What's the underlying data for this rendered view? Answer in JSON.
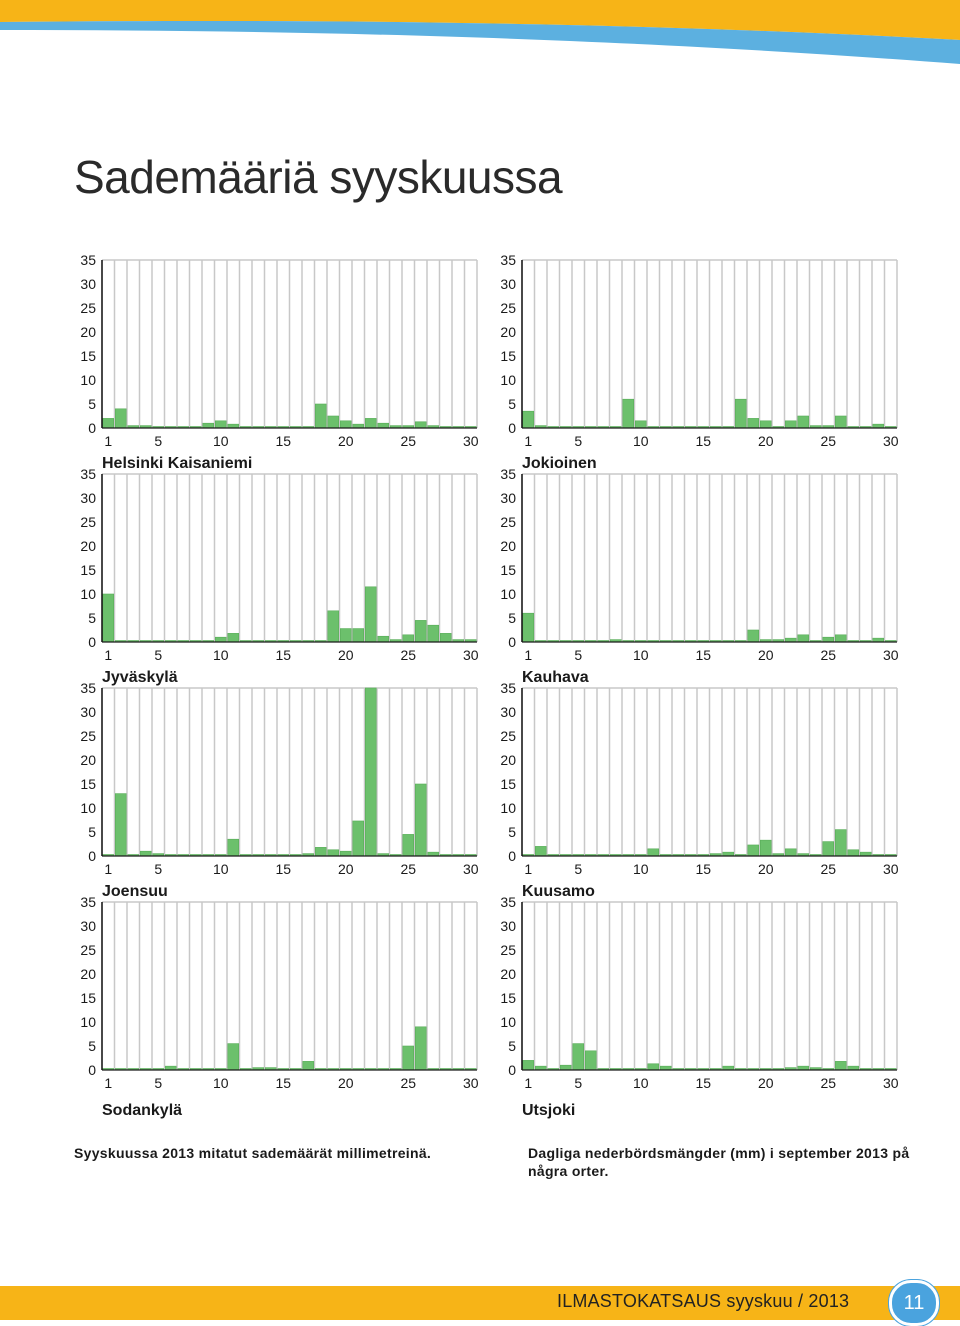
{
  "page": {
    "title": "Sademääriä syyskuussa",
    "caption_fi": "Syyskuussa 2013 mitatut sademäärät millimetreinä.",
    "caption_sv": "Dagliga nederbördsmängder (mm) i september 2013 på några orter.",
    "footer": "ILMASTOKATSAUS syyskuu / 2013",
    "page_number": "11"
  },
  "colors": {
    "bar": "#6cc06c",
    "bar_edge": "#58ad58",
    "grid": "#c8c8c8",
    "axis": "#1a1a1a",
    "top_band_blue": "#5cb0e0",
    "footer_yellow": "#f7b417",
    "badge": "#4aa3de"
  },
  "chart_data": [
    {
      "type": "bar",
      "station": "Helsinki Kaisaniemi",
      "x": [
        1,
        2,
        3,
        4,
        5,
        6,
        7,
        8,
        9,
        10,
        11,
        12,
        13,
        14,
        15,
        16,
        17,
        18,
        19,
        20,
        21,
        22,
        23,
        24,
        25,
        26,
        27,
        28,
        29,
        30
      ],
      "values": [
        2,
        4,
        0.5,
        0.5,
        0.3,
        0.3,
        0.3,
        0.3,
        1,
        1.5,
        0.8,
        0.3,
        0.3,
        0.3,
        0.3,
        0.3,
        0.3,
        5,
        2.5,
        1.5,
        0.8,
        2,
        1,
        0.5,
        0.5,
        1.3,
        0.5,
        0.3,
        0.3,
        0.3
      ],
      "yticks": [
        0,
        5,
        10,
        15,
        20,
        25,
        30,
        35
      ],
      "xticks": [
        1,
        5,
        10,
        15,
        20,
        25,
        30
      ],
      "ylim": [
        0,
        35
      ]
    },
    {
      "type": "bar",
      "station": "Jokioinen",
      "x": [
        1,
        2,
        3,
        4,
        5,
        6,
        7,
        8,
        9,
        10,
        11,
        12,
        13,
        14,
        15,
        16,
        17,
        18,
        19,
        20,
        21,
        22,
        23,
        24,
        25,
        26,
        27,
        28,
        29,
        30
      ],
      "values": [
        3.5,
        0.5,
        0.3,
        0.3,
        0.3,
        0.3,
        0.3,
        0.3,
        6,
        1.5,
        0.3,
        0.3,
        0.3,
        0.3,
        0.3,
        0.3,
        0.3,
        6,
        2,
        1.5,
        0.3,
        1.5,
        2.5,
        0.5,
        0.5,
        2.5,
        0.3,
        0.3,
        0.8,
        0.3
      ],
      "yticks": [
        0,
        5,
        10,
        15,
        20,
        25,
        30,
        35
      ],
      "xticks": [
        1,
        5,
        10,
        15,
        20,
        25,
        30
      ],
      "ylim": [
        0,
        35
      ]
    },
    {
      "type": "bar",
      "station": "Jyväskylä",
      "x": [
        1,
        2,
        3,
        4,
        5,
        6,
        7,
        8,
        9,
        10,
        11,
        12,
        13,
        14,
        15,
        16,
        17,
        18,
        19,
        20,
        21,
        22,
        23,
        24,
        25,
        26,
        27,
        28,
        29,
        30
      ],
      "values": [
        10,
        0.3,
        0.3,
        0.3,
        0.3,
        0.3,
        0.3,
        0.3,
        0.3,
        1,
        1.8,
        0.3,
        0.3,
        0.3,
        0.3,
        0.3,
        0.3,
        0.3,
        6.5,
        2.8,
        2.8,
        11.5,
        1.2,
        0.5,
        1.5,
        4.5,
        3.5,
        1.8,
        0.5,
        0.5
      ],
      "yticks": [
        0,
        5,
        10,
        15,
        20,
        25,
        30,
        35
      ],
      "xticks": [
        1,
        5,
        10,
        15,
        20,
        25,
        30
      ],
      "ylim": [
        0,
        35
      ]
    },
    {
      "type": "bar",
      "station": "Kauhava",
      "x": [
        1,
        2,
        3,
        4,
        5,
        6,
        7,
        8,
        9,
        10,
        11,
        12,
        13,
        14,
        15,
        16,
        17,
        18,
        19,
        20,
        21,
        22,
        23,
        24,
        25,
        26,
        27,
        28,
        29,
        30
      ],
      "values": [
        6,
        0.3,
        0.3,
        0.3,
        0.3,
        0.3,
        0.3,
        0.5,
        0.3,
        0.3,
        0.3,
        0.3,
        0.3,
        0.3,
        0.3,
        0.3,
        0.3,
        0.3,
        2.5,
        0.5,
        0.5,
        0.8,
        1.5,
        0.3,
        1,
        1.5,
        0.3,
        0.3,
        0.8,
        0.3
      ],
      "yticks": [
        0,
        5,
        10,
        15,
        20,
        25,
        30,
        35
      ],
      "xticks": [
        1,
        5,
        10,
        15,
        20,
        25,
        30
      ],
      "ylim": [
        0,
        35
      ]
    },
    {
      "type": "bar",
      "station": "Joensuu",
      "x": [
        1,
        2,
        3,
        4,
        5,
        6,
        7,
        8,
        9,
        10,
        11,
        12,
        13,
        14,
        15,
        16,
        17,
        18,
        19,
        20,
        21,
        22,
        23,
        24,
        25,
        26,
        27,
        28,
        29,
        30
      ],
      "values": [
        0.3,
        13,
        0.3,
        1,
        0.5,
        0.3,
        0.3,
        0.3,
        0.3,
        0.3,
        3.5,
        0.3,
        0.3,
        0.3,
        0.3,
        0.3,
        0.5,
        1.8,
        1.3,
        1,
        7.3,
        35,
        0.5,
        0.3,
        4.5,
        15,
        0.8,
        0.3,
        0.3,
        0.3
      ],
      "yticks": [
        0,
        5,
        10,
        15,
        20,
        25,
        30,
        35
      ],
      "xticks": [
        1,
        5,
        10,
        15,
        20,
        25,
        30
      ],
      "ylim": [
        0,
        35
      ]
    },
    {
      "type": "bar",
      "station": "Kuusamo",
      "x": [
        1,
        2,
        3,
        4,
        5,
        6,
        7,
        8,
        9,
        10,
        11,
        12,
        13,
        14,
        15,
        16,
        17,
        18,
        19,
        20,
        21,
        22,
        23,
        24,
        25,
        26,
        27,
        28,
        29,
        30
      ],
      "values": [
        0.3,
        2,
        0.3,
        0.3,
        0.3,
        0.3,
        0.3,
        0.3,
        0.3,
        0.3,
        1.5,
        0.3,
        0.3,
        0.3,
        0.3,
        0.5,
        0.8,
        0.3,
        2.3,
        3.3,
        0.5,
        1.5,
        0.5,
        0.3,
        3,
        5.5,
        1.3,
        0.8,
        0.3,
        0.3
      ],
      "yticks": [
        0,
        5,
        10,
        15,
        20,
        25,
        30,
        35
      ],
      "xticks": [
        1,
        5,
        10,
        15,
        20,
        25,
        30
      ],
      "ylim": [
        0,
        35
      ]
    },
    {
      "type": "bar",
      "station": "Sodankylä",
      "x": [
        1,
        2,
        3,
        4,
        5,
        6,
        7,
        8,
        9,
        10,
        11,
        12,
        13,
        14,
        15,
        16,
        17,
        18,
        19,
        20,
        21,
        22,
        23,
        24,
        25,
        26,
        27,
        28,
        29,
        30
      ],
      "values": [
        0.3,
        0.3,
        0.3,
        0.3,
        0.3,
        0.8,
        0.3,
        0.3,
        0.3,
        0.3,
        5.5,
        0.3,
        0.5,
        0.5,
        0.3,
        0.3,
        1.8,
        0.3,
        0.3,
        0.3,
        0.3,
        0.3,
        0.3,
        0.3,
        5,
        9,
        0.3,
        0.3,
        0.3,
        0.3
      ],
      "yticks": [
        0,
        5,
        10,
        15,
        20,
        25,
        30,
        35
      ],
      "xticks": [
        1,
        5,
        10,
        15,
        20,
        25,
        30
      ],
      "ylim": [
        0,
        35
      ]
    },
    {
      "type": "bar",
      "station": "Utsjoki",
      "x": [
        1,
        2,
        3,
        4,
        5,
        6,
        7,
        8,
        9,
        10,
        11,
        12,
        13,
        14,
        15,
        16,
        17,
        18,
        19,
        20,
        21,
        22,
        23,
        24,
        25,
        26,
        27,
        28,
        29,
        30
      ],
      "values": [
        2,
        0.8,
        0.3,
        1,
        5.5,
        4,
        0.3,
        0.3,
        0.3,
        0.3,
        1.3,
        0.8,
        0.3,
        0.3,
        0.3,
        0.3,
        0.8,
        0.3,
        0.3,
        0.3,
        0.3,
        0.5,
        0.8,
        0.5,
        0.3,
        1.8,
        0.8,
        0.3,
        0.3,
        0.3
      ],
      "yticks": [
        0,
        5,
        10,
        15,
        20,
        25,
        30,
        35
      ],
      "xticks": [
        1,
        5,
        10,
        15,
        20,
        25,
        30
      ],
      "ylim": [
        0,
        35
      ]
    }
  ]
}
